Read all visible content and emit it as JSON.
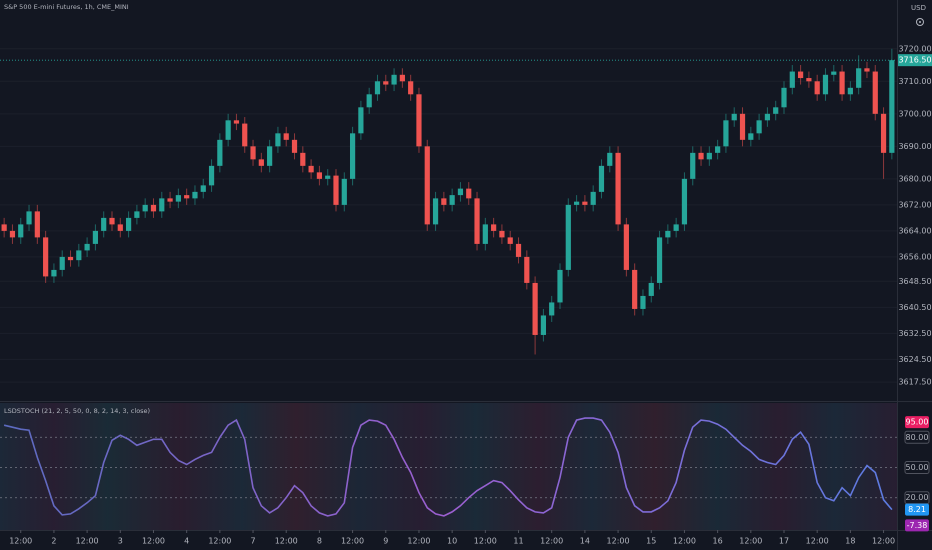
{
  "header": {
    "title": "S&P 500 E-mini Futures, 1h, CME_MINI",
    "currency": "USD"
  },
  "chart_data": [
    {
      "type": "candlestick",
      "up_color": "#26a69a",
      "down_color": "#ef5350",
      "grid": true,
      "xlim": [
        -0.5,
        107.5
      ],
      "ylim": [
        3612,
        3735
      ],
      "yticks": [
        {
          "value": 3720,
          "label": "3720.00"
        },
        {
          "value": 3710,
          "label": "3710.00"
        },
        {
          "value": 3700,
          "label": "3700.00"
        },
        {
          "value": 3690,
          "label": "3690.00"
        },
        {
          "value": 3680,
          "label": "3680.00"
        },
        {
          "value": 3672,
          "label": "3672.00"
        },
        {
          "value": 3664,
          "label": "3664.00"
        },
        {
          "value": 3656,
          "label": "3656.00"
        },
        {
          "value": 3648.5,
          "label": "3648.50"
        },
        {
          "value": 3640.5,
          "label": "3640.50"
        },
        {
          "value": 3632.5,
          "label": "3632.50"
        },
        {
          "value": 3624.5,
          "label": "3624.50"
        },
        {
          "value": 3617.5,
          "label": "3617.50"
        }
      ],
      "last_price": {
        "value": 3716.5,
        "label": "3716.50"
      },
      "open": [
        3666,
        3664,
        3662,
        3666,
        3670,
        3662,
        3650,
        3652,
        3656,
        3655,
        3658,
        3660,
        3664,
        3668,
        3666,
        3664,
        3668,
        3670,
        3672,
        3670,
        3674,
        3673,
        3675,
        3674,
        3676,
        3678,
        3684,
        3692,
        3698,
        3697,
        3690,
        3686,
        3684,
        3690,
        3694,
        3692,
        3688,
        3684,
        3682,
        3680,
        3681,
        3672,
        3680,
        3694,
        3702,
        3706,
        3710,
        3709,
        3712,
        3710,
        3706,
        3690,
        3666,
        3674,
        3672,
        3675,
        3677,
        3674,
        3660,
        3666,
        3664,
        3662,
        3660,
        3656,
        3648,
        3632,
        3638,
        3642,
        3652,
        3672,
        3673,
        3672,
        3676,
        3684,
        3688,
        3666,
        3652,
        3640,
        3644,
        3648,
        3662,
        3664,
        3666,
        3680,
        3688,
        3686,
        3688,
        3690,
        3698,
        3700,
        3692,
        3694,
        3698,
        3700,
        3702,
        3708,
        3713,
        3711,
        3710,
        3706,
        3712,
        3713,
        3706,
        3708,
        3714,
        3713,
        3700,
        3688
      ],
      "high": [
        3668,
        3666,
        3668,
        3672,
        3672,
        3664,
        3654,
        3658,
        3658,
        3660,
        3662,
        3666,
        3670,
        3670,
        3668,
        3670,
        3672,
        3674,
        3674,
        3676,
        3676,
        3677,
        3677,
        3678,
        3680,
        3686,
        3694,
        3700,
        3700,
        3699,
        3692,
        3688,
        3692,
        3696,
        3696,
        3694,
        3690,
        3686,
        3684,
        3683,
        3683,
        3682,
        3696,
        3704,
        3708,
        3712,
        3712,
        3714,
        3714,
        3712,
        3708,
        3692,
        3676,
        3676,
        3677,
        3679,
        3679,
        3676,
        3668,
        3668,
        3666,
        3664,
        3662,
        3658,
        3650,
        3640,
        3644,
        3654,
        3674,
        3675,
        3675,
        3678,
        3686,
        3690,
        3690,
        3668,
        3654,
        3646,
        3650,
        3664,
        3666,
        3668,
        3682,
        3690,
        3690,
        3690,
        3692,
        3700,
        3702,
        3702,
        3696,
        3700,
        3702,
        3704,
        3710,
        3715,
        3715,
        3713,
        3712,
        3714,
        3715,
        3715,
        3710,
        3718,
        3716,
        3715,
        3702,
        3720
      ],
      "low": [
        3662,
        3660,
        3660,
        3664,
        3660,
        3648,
        3648,
        3650,
        3653,
        3653,
        3656,
        3658,
        3662,
        3664,
        3662,
        3662,
        3666,
        3668,
        3668,
        3668,
        3671,
        3671,
        3672,
        3672,
        3674,
        3676,
        3682,
        3690,
        3695,
        3688,
        3684,
        3682,
        3682,
        3688,
        3690,
        3686,
        3682,
        3680,
        3678,
        3678,
        3670,
        3670,
        3678,
        3692,
        3700,
        3704,
        3707,
        3707,
        3708,
        3704,
        3688,
        3664,
        3664,
        3670,
        3670,
        3673,
        3672,
        3658,
        3658,
        3662,
        3660,
        3658,
        3654,
        3646,
        3626,
        3630,
        3636,
        3640,
        3650,
        3670,
        3670,
        3670,
        3674,
        3682,
        3664,
        3650,
        3638,
        3638,
        3642,
        3646,
        3660,
        3662,
        3664,
        3678,
        3684,
        3684,
        3686,
        3688,
        3696,
        3690,
        3690,
        3692,
        3696,
        3698,
        3700,
        3706,
        3709,
        3708,
        3704,
        3704,
        3710,
        3704,
        3704,
        3706,
        3711,
        3698,
        3680,
        3686
      ],
      "close": [
        3664,
        3662,
        3666,
        3670,
        3662,
        3650,
        3652,
        3656,
        3655,
        3658,
        3660,
        3664,
        3668,
        3666,
        3664,
        3668,
        3670,
        3672,
        3670,
        3674,
        3673,
        3675,
        3674,
        3676,
        3678,
        3684,
        3692,
        3698,
        3697,
        3690,
        3686,
        3684,
        3690,
        3694,
        3692,
        3688,
        3684,
        3682,
        3680,
        3681,
        3672,
        3680,
        3694,
        3702,
        3706,
        3710,
        3709,
        3712,
        3710,
        3706,
        3690,
        3666,
        3674,
        3672,
        3675,
        3677,
        3674,
        3660,
        3666,
        3664,
        3662,
        3660,
        3656,
        3648,
        3632,
        3638,
        3642,
        3652,
        3672,
        3673,
        3672,
        3676,
        3684,
        3688,
        3666,
        3652,
        3640,
        3644,
        3648,
        3662,
        3664,
        3666,
        3680,
        3688,
        3686,
        3688,
        3690,
        3698,
        3700,
        3692,
        3694,
        3698,
        3700,
        3702,
        3708,
        3713,
        3711,
        3710,
        3706,
        3712,
        3713,
        3706,
        3708,
        3714,
        3713,
        3700,
        3688,
        3716.5
      ]
    },
    {
      "type": "line",
      "title": "LSDSTOCH (21, 2, 5, 50, 0, 8, 2, 14, 3, close)",
      "color": "#7b68ee",
      "grid": true,
      "xlim": [
        -0.5,
        107.5
      ],
      "ylim": [
        -12,
        114
      ],
      "yticks": [
        {
          "value": 80,
          "label": "80.00"
        },
        {
          "value": 50,
          "label": "50.00"
        },
        {
          "value": 20,
          "label": "20.00"
        }
      ],
      "badges": [
        {
          "value": 95,
          "label": "95.00",
          "color": "#e91e63"
        },
        {
          "value": 8.21,
          "label": "8.21",
          "color": "#2196f3"
        },
        {
          "value": -7.38,
          "label": "-7.38",
          "color": "#9c27b0"
        }
      ],
      "xticks": [
        {
          "value": 2,
          "label": "12:00"
        },
        {
          "value": 6,
          "label": "2"
        },
        {
          "value": 10,
          "label": "12:00"
        },
        {
          "value": 14,
          "label": "3"
        },
        {
          "value": 18,
          "label": "12:00"
        },
        {
          "value": 22,
          "label": "4"
        },
        {
          "value": 26,
          "label": "12:00"
        },
        {
          "value": 30,
          "label": "7"
        },
        {
          "value": 34,
          "label": "12:00"
        },
        {
          "value": 38,
          "label": "8"
        },
        {
          "value": 42,
          "label": "12:00"
        },
        {
          "value": 46,
          "label": "9"
        },
        {
          "value": 50,
          "label": "12:00"
        },
        {
          "value": 54,
          "label": "10"
        },
        {
          "value": 58,
          "label": "12:00"
        },
        {
          "value": 62,
          "label": "11"
        },
        {
          "value": 66,
          "label": "12:00"
        },
        {
          "value": 70,
          "label": "14"
        },
        {
          "value": 74,
          "label": "12:00"
        },
        {
          "value": 78,
          "label": "15"
        },
        {
          "value": 82,
          "label": "12:00"
        },
        {
          "value": 86,
          "label": "16"
        },
        {
          "value": 90,
          "label": "12:00"
        },
        {
          "value": 94,
          "label": "17"
        },
        {
          "value": 98,
          "label": "12:00"
        },
        {
          "value": 102,
          "label": "18"
        },
        {
          "value": 106,
          "label": "12:00"
        }
      ],
      "values": [
        92,
        90,
        88,
        87,
        60,
        37,
        12,
        3,
        4,
        9,
        15,
        22,
        55,
        77,
        82,
        78,
        72,
        75,
        78,
        78,
        65,
        57,
        53,
        58,
        62,
        65,
        80,
        92,
        97,
        78,
        30,
        12,
        5,
        10,
        20,
        32,
        25,
        12,
        5,
        2,
        4,
        15,
        70,
        92,
        97,
        96,
        92,
        78,
        60,
        45,
        25,
        10,
        4,
        2,
        6,
        12,
        20,
        27,
        32,
        37,
        35,
        27,
        18,
        10,
        6,
        5,
        10,
        40,
        80,
        97,
        99,
        99,
        97,
        85,
        65,
        30,
        12,
        6,
        6,
        10,
        17,
        35,
        67,
        90,
        97,
        96,
        93,
        88,
        80,
        72,
        66,
        58,
        55,
        53,
        62,
        78,
        85,
        73,
        35,
        20,
        17,
        30,
        22,
        40,
        52,
        45,
        18,
        8.21
      ]
    }
  ]
}
